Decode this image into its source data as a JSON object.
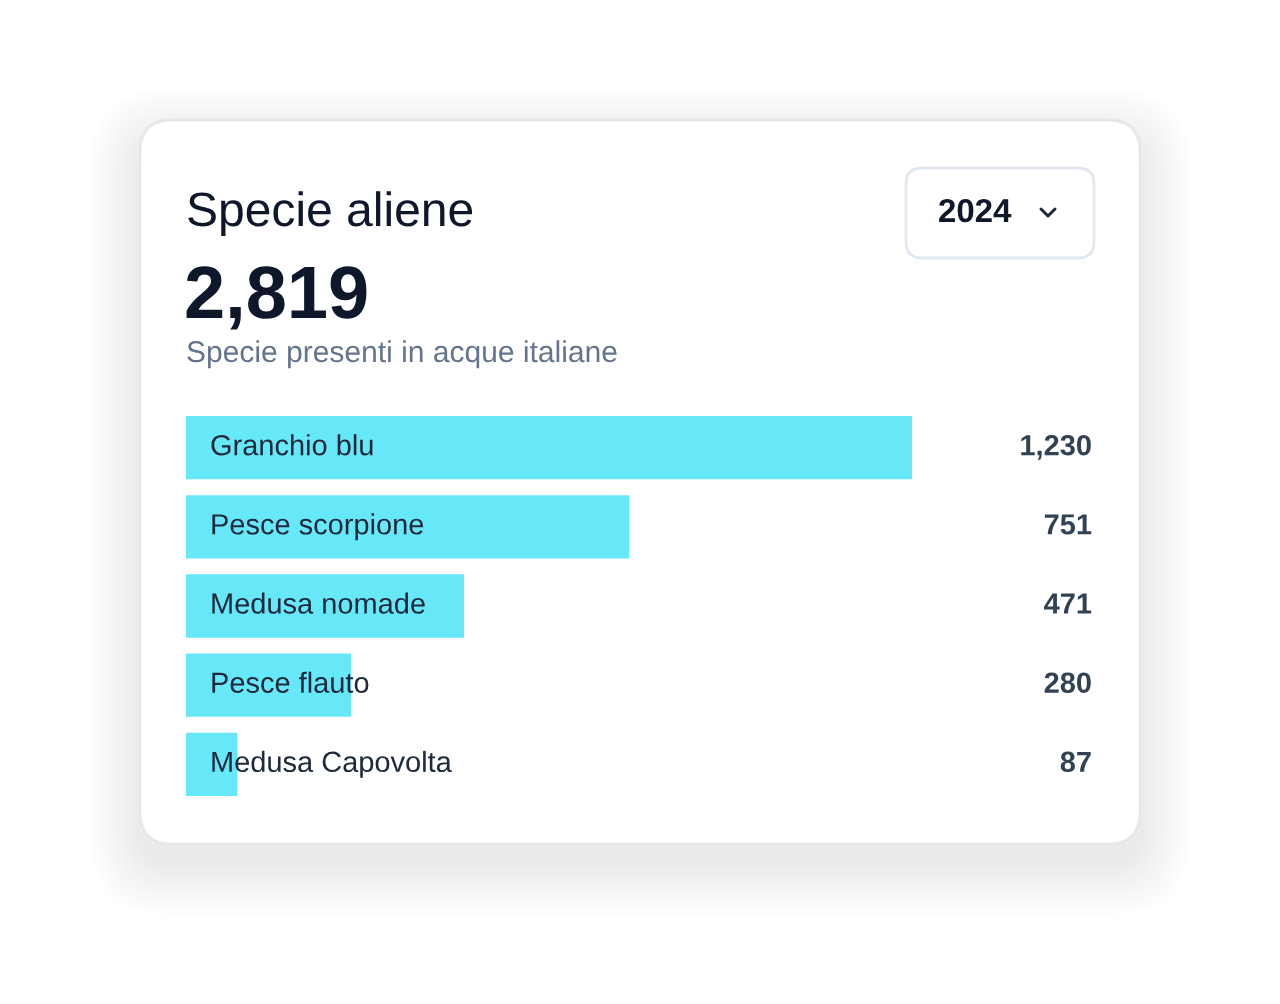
{
  "chart_data": {
    "type": "bar",
    "orientation": "horizontal",
    "title": "Specie aliene",
    "subtitle": "Specie presenti in acque italiane",
    "annotations": [
      "2,819",
      "2024"
    ],
    "categories": [
      "Granchio blu",
      "Pesce scorpione",
      "Medusa nomade",
      "Pesce flauto",
      "Medusa Capovolta"
    ],
    "values": [
      1230,
      751,
      471,
      280,
      87
    ],
    "color": "#67e8f9",
    "value_labels": [
      "1,230",
      "751",
      "471",
      "280",
      "87"
    ],
    "xlim": [
      0,
      1230
    ]
  }
}
